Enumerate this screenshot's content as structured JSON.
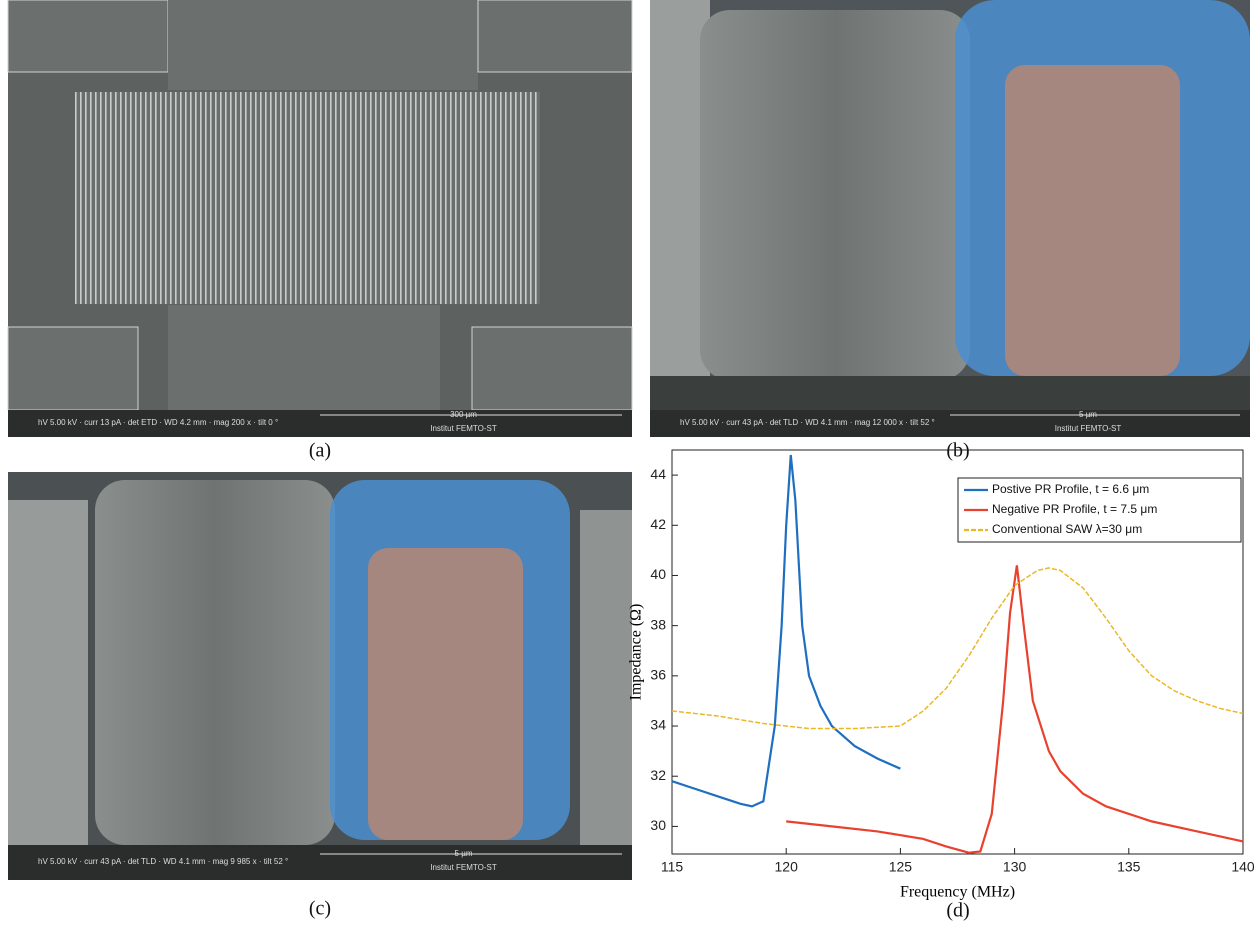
{
  "panels": [
    {
      "label": "(a)",
      "scale_bar": "300 µm",
      "info": "hV 5.00 kV · curr 13 pA · det ETD · WD 4.2 mm · mag 200 x · tilt 0 °",
      "institute": "Institut FEMTO-ST"
    },
    {
      "label": "(b)",
      "scale_bar": "5 µm",
      "info": "hV 5.00 kV · curr 43 pA · det TLD · WD 4.1 mm · mag 12 000 x · tilt 52 °",
      "institute": "Institut FEMTO-ST"
    },
    {
      "label": "(c)",
      "scale_bar": "5 µm",
      "info": "hV 5.00 kV · curr 43 pA · det TLD · WD 4.1 mm · mag 9 985 x · tilt 52 °",
      "institute": "Institut FEMTO-ST"
    },
    {
      "label": "(d)"
    }
  ],
  "chart_data": {
    "type": "line",
    "x_label": "Frequency (MHz)",
    "y_label": "Impedance (Ω)",
    "xlim": [
      115,
      140
    ],
    "xticks": [
      115,
      120,
      125,
      130,
      135,
      140
    ],
    "ylim": [
      28.9,
      45
    ],
    "yticks": [
      30,
      32,
      34,
      36,
      38,
      40,
      42,
      44
    ],
    "grid": false,
    "legend": "upper right",
    "series": [
      {
        "name": "Postive PR Profile, t = 6.6 μm",
        "color": "#1f6fc0",
        "dash": false,
        "x": [
          115,
          116,
          117,
          118,
          118.5,
          119,
          119.5,
          119.8,
          120,
          120.2,
          120.4,
          120.7,
          121,
          121.5,
          122,
          123,
          124,
          125
        ],
        "values": [
          31.8,
          31.5,
          31.2,
          30.9,
          30.8,
          31.0,
          34,
          38,
          42,
          44.8,
          43,
          38,
          36,
          34.8,
          34.0,
          33.2,
          32.7,
          32.3
        ]
      },
      {
        "name": "Negative PR Profile, t = 7.5 μm",
        "color": "#e8422f",
        "dash": false,
        "x": [
          120,
          122,
          124,
          126,
          127,
          128,
          128.5,
          129,
          129.5,
          129.8,
          130.1,
          130.4,
          130.8,
          131.5,
          132,
          133,
          134,
          136,
          138,
          140
        ],
        "values": [
          30.2,
          30.0,
          29.8,
          29.5,
          29.2,
          28.95,
          29.0,
          30.5,
          35,
          38.5,
          40.4,
          38,
          35,
          33,
          32.2,
          31.3,
          30.8,
          30.2,
          29.8,
          29.4
        ]
      },
      {
        "name": "Conventional SAW λ=30 μm",
        "color": "#eab823",
        "dash": true,
        "x": [
          115,
          117,
          119,
          121,
          123,
          125,
          126,
          127,
          128,
          129,
          130,
          131,
          131.5,
          132,
          133,
          134,
          135,
          136,
          137,
          138,
          139,
          140
        ],
        "values": [
          34.6,
          34.4,
          34.1,
          33.9,
          33.9,
          34.0,
          34.6,
          35.5,
          36.8,
          38.3,
          39.6,
          40.2,
          40.3,
          40.2,
          39.5,
          38.3,
          37.0,
          36.0,
          35.4,
          35.0,
          34.7,
          34.5
        ]
      }
    ]
  }
}
